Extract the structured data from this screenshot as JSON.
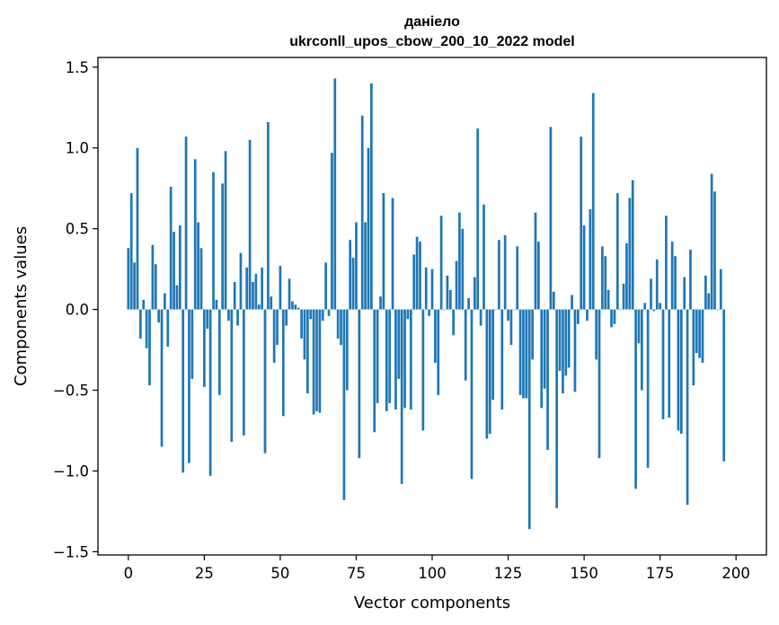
{
  "chart_data": {
    "type": "bar",
    "title_line1": "даніело",
    "title_line2": "ukrconll_upos_cbow_200_10_2022 model",
    "xlabel": "Vector components",
    "ylabel": "Components values",
    "xlim": [
      -10,
      210
    ],
    "ylim": [
      -1.52,
      1.56
    ],
    "xticks": [
      0,
      25,
      50,
      75,
      100,
      125,
      150,
      175,
      200
    ],
    "yticks": [
      -1.5,
      -1.0,
      -0.5,
      0.0,
      0.5,
      1.0,
      1.5
    ],
    "ytick_labels": [
      "−1.5",
      "−1.0",
      "−0.5",
      "0.0",
      "0.5",
      "1.0",
      "1.5"
    ],
    "grid": false,
    "bar_color": "#1f77b4",
    "values": [
      0.38,
      0.72,
      0.29,
      1.0,
      -0.18,
      0.06,
      -0.24,
      -0.47,
      0.4,
      0.28,
      -0.08,
      -0.85,
      0.1,
      -0.23,
      0.76,
      0.48,
      0.15,
      0.52,
      -1.01,
      1.07,
      -0.95,
      -0.43,
      0.93,
      0.54,
      0.38,
      -0.48,
      -0.12,
      -1.03,
      0.85,
      0.06,
      -0.53,
      0.78,
      0.98,
      -0.07,
      -0.82,
      0.17,
      -0.1,
      0.35,
      -0.78,
      0.26,
      1.05,
      0.17,
      0.22,
      0.03,
      0.26,
      -0.89,
      1.16,
      0.08,
      -0.33,
      -0.22,
      0.27,
      -0.66,
      -0.1,
      0.19,
      0.05,
      0.03,
      0.01,
      -0.18,
      -0.31,
      -0.52,
      -0.06,
      -0.65,
      -0.63,
      -0.64,
      -0.07,
      0.29,
      -0.04,
      0.97,
      1.43,
      -0.18,
      -0.22,
      -1.18,
      -0.5,
      0.43,
      0.32,
      0.54,
      -0.92,
      1.2,
      0.54,
      1.0,
      1.4,
      -0.76,
      -0.58,
      0.08,
      0.72,
      -0.63,
      -0.58,
      0.69,
      -0.62,
      -0.43,
      -1.08,
      -0.61,
      -0.06,
      -0.62,
      0.34,
      0.45,
      0.42,
      -0.75,
      0.26,
      -0.04,
      0.25,
      -0.33,
      -0.53,
      0.58,
      0.0,
      0.21,
      0.12,
      -0.16,
      0.3,
      0.6,
      0.5,
      -0.44,
      0.07,
      -1.05,
      0.2,
      1.12,
      -0.1,
      0.65,
      -0.8,
      -0.77,
      -0.56,
      0.0,
      0.43,
      -0.62,
      0.46,
      -0.07,
      -0.22,
      0.0,
      0.39,
      -0.53,
      -0.55,
      -0.55,
      -1.36,
      -0.31,
      0.6,
      0.42,
      -0.61,
      -0.49,
      -0.87,
      1.13,
      0.11,
      -1.23,
      -0.38,
      -0.52,
      -0.41,
      -0.36,
      0.09,
      -0.51,
      -0.09,
      1.07,
      0.52,
      -0.07,
      0.62,
      1.34,
      -0.31,
      -0.92,
      0.39,
      0.33,
      0.12,
      -0.11,
      -0.09,
      0.72,
      0.0,
      0.16,
      0.41,
      0.69,
      0.8,
      -1.11,
      -0.21,
      -0.5,
      0.04,
      -0.98,
      0.19,
      -0.01,
      0.31,
      0.04,
      -0.68,
      0.58,
      -0.67,
      0.42,
      0.33,
      -0.75,
      -0.77,
      0.2,
      -1.21,
      0.37,
      -0.47,
      -0.27,
      -0.3,
      -0.33,
      0.21,
      0.1,
      0.84,
      0.73,
      0.0,
      0.25,
      -0.94
    ]
  }
}
